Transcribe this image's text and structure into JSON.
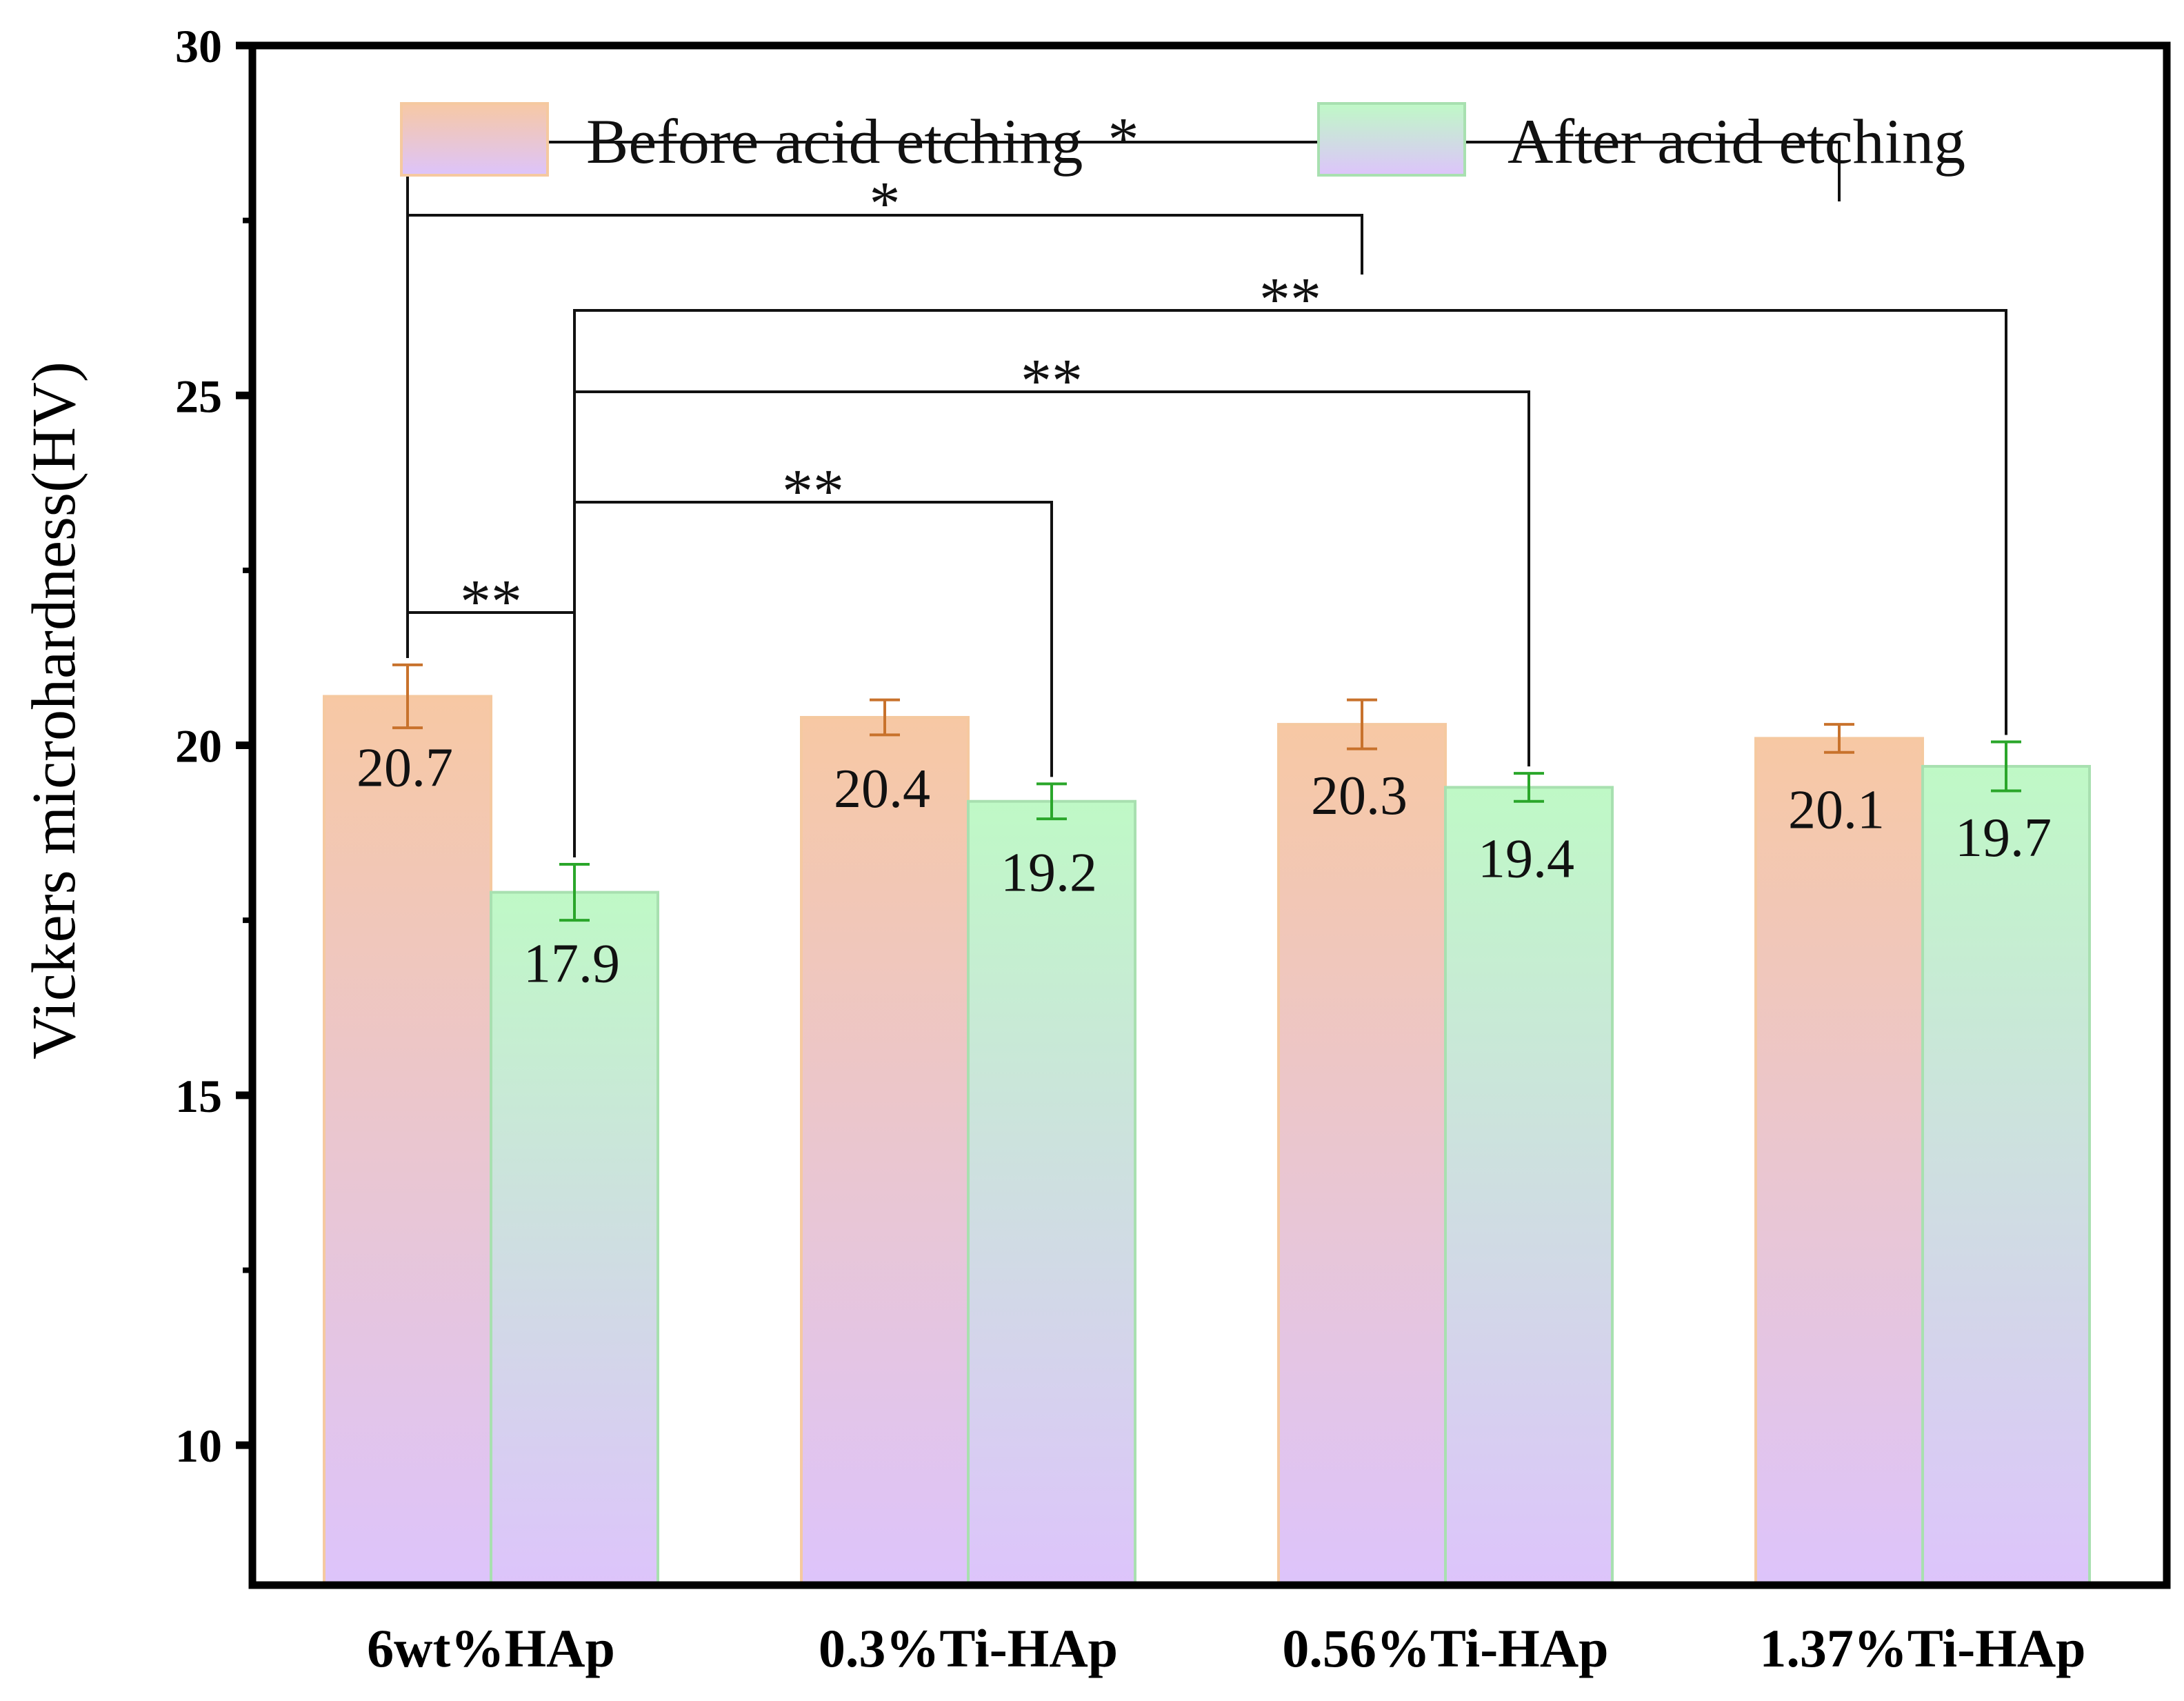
{
  "chart_data": {
    "type": "bar",
    "ylabel": "Vickers microhardness(HV)",
    "ylim": [
      8,
      30
    ],
    "yticks": [
      10,
      15,
      20,
      25,
      30
    ],
    "categories": [
      "6wt%HAp",
      "0.3%Ti-HAp",
      "0.56%Ti-HAp",
      "1.37%Ti-HAp"
    ],
    "series": [
      {
        "name": "Before acid etching",
        "values": [
          20.7,
          20.4,
          20.3,
          20.1
        ],
        "errors": [
          0.45,
          0.25,
          0.35,
          0.2
        ],
        "labels": [
          "20.7",
          "20.4",
          "20.3",
          "20.1"
        ],
        "gradient_top": "#f7c8a4",
        "gradient_bottom": "#ddc4fb",
        "border": "#f5c9a0",
        "error_color": "#c8722c"
      },
      {
        "name": "After acid etching",
        "values": [
          17.9,
          19.2,
          19.4,
          19.7
        ],
        "errors": [
          0.4,
          0.25,
          0.2,
          0.35
        ],
        "labels": [
          "17.9",
          "19.2",
          "19.4",
          "19.7"
        ],
        "gradient_top": "#bff9c6",
        "gradient_bottom": "#ddc4fb",
        "border": "#a8e0b0",
        "error_color": "#2aa62a"
      }
    ],
    "legend": {
      "position": "top",
      "orientation": "horizontal"
    },
    "grid": false,
    "significance": [
      {
        "from_group": 0,
        "from_series": 0,
        "to_group": 0,
        "to_series": 1,
        "label": "**"
      },
      {
        "from_group": 0,
        "from_series": 1,
        "to_group": 1,
        "to_series": 1,
        "label": "**"
      },
      {
        "from_group": 0,
        "from_series": 1,
        "to_group": 2,
        "to_series": 1,
        "label": "**"
      },
      {
        "from_group": 0,
        "from_series": 1,
        "to_group": 3,
        "to_series": 1,
        "label": "**"
      },
      {
        "from_group": 0,
        "from_series": 0,
        "to_group": 2,
        "to_series": 0,
        "label": "*"
      },
      {
        "from_group": 0,
        "from_series": 0,
        "to_group": 3,
        "to_series": 0,
        "label": "*"
      }
    ]
  }
}
